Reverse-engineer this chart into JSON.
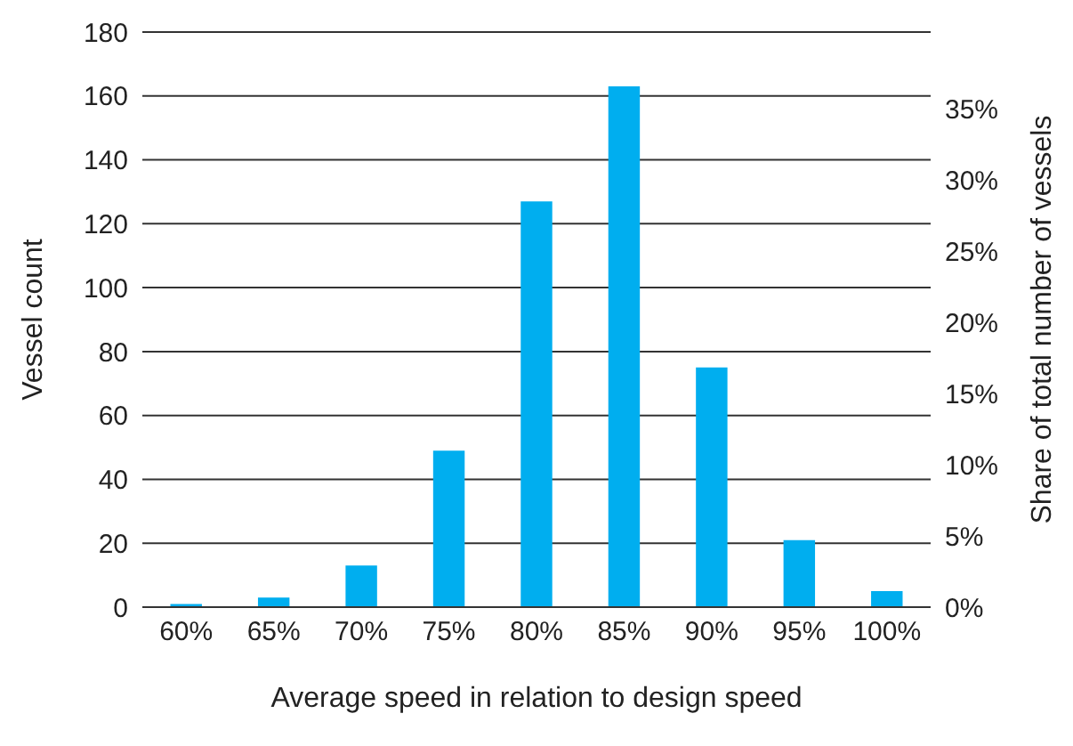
{
  "chart_data": {
    "type": "bar",
    "xlabel": "Average speed in relation to design speed",
    "ylabel": "Vessel count",
    "y2label": "Share of total number of vessels",
    "categories": [
      "60%",
      "65%",
      "70%",
      "75%",
      "80%",
      "85%",
      "90%",
      "95%",
      "100%"
    ],
    "series": [
      {
        "color": "#00aeef",
        "values": [
          1,
          3,
          13,
          49,
          127,
          163,
          75,
          21,
          5
        ]
      }
    ],
    "ylim": [
      0,
      180
    ],
    "yticks": [
      0,
      20,
      40,
      60,
      80,
      100,
      120,
      140,
      160,
      180
    ],
    "y2lim": [
      0,
      40.4
    ],
    "y2ticks": [
      {
        "value": 0,
        "label": "0%"
      },
      {
        "value": 5,
        "label": "5%"
      },
      {
        "value": 10,
        "label": "10%"
      },
      {
        "value": 15,
        "label": "15%"
      },
      {
        "value": 20,
        "label": "20%"
      },
      {
        "value": 25,
        "label": "25%"
      },
      {
        "value": 30,
        "label": "30%"
      },
      {
        "value": 35,
        "label": "35%"
      }
    ],
    "grid": "y",
    "legend": false
  }
}
